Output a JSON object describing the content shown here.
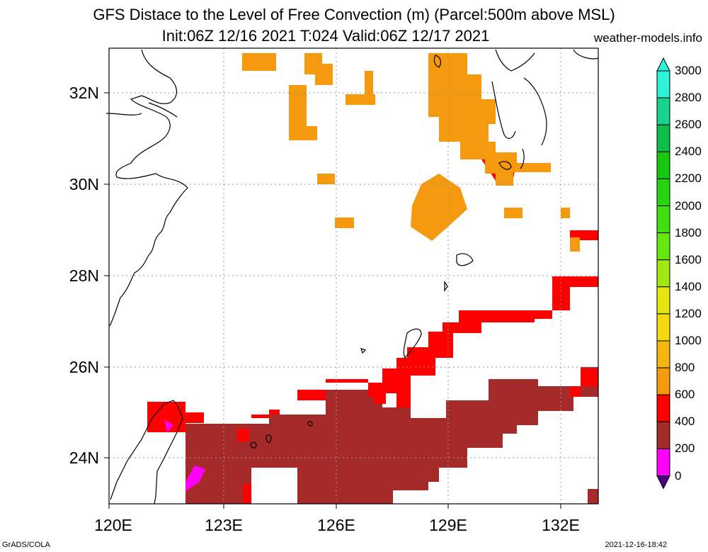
{
  "title_line1": "GFS Distace to the Level of Free Convection (m) (Parcel:500m above MSL)",
  "title_line2": "Init:06Z 12/16 2021 T:024 Valid:06Z 12/17 2021",
  "site": "weather-models.info",
  "footer_left": "GrADS/COLA",
  "footer_right": "2021-12-16-18:42",
  "lat_labels": [
    "32N",
    "30N",
    "28N",
    "26N",
    "24N"
  ],
  "lon_labels": [
    "120E",
    "123E",
    "126E",
    "129E",
    "132E"
  ],
  "colorbar": {
    "labels": [
      "3000",
      "2800",
      "2600",
      "2400",
      "2200",
      "2000",
      "1800",
      "1600",
      "1400",
      "1200",
      "1000",
      "800",
      "600",
      "400",
      "200",
      "0"
    ],
    "colors": [
      "#2ef2d9",
      "#16d38e",
      "#0dbe4a",
      "#16c80f",
      "#28d40f",
      "#3ee00f",
      "#66e80f",
      "#a0e80f",
      "#e3e60f",
      "#f5d90f",
      "#f5b70f",
      "#f59a0f",
      "#ff0000",
      "#a52a2a",
      "#ff00ff",
      "#4b0082"
    ]
  },
  "field_colors": {
    "v200": "#ff00ff",
    "v400": "#a52a2a",
    "v600": "#ff0000",
    "v800": "#f59a0f",
    "v1000": "#f5b70f"
  }
}
